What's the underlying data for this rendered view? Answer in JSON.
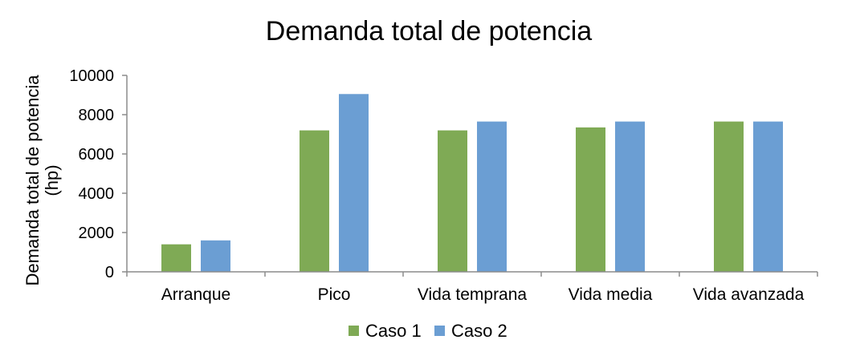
{
  "chart_data": {
    "type": "bar",
    "title": "Demanda total de potencia",
    "ylabel_line1": "Demanda total de potencia",
    "ylabel_line2": "(hp)",
    "xlabel": "",
    "categories": [
      "Arranque",
      "Pico",
      "Vida temprana",
      "Vida media",
      "Vida avanzada"
    ],
    "series": [
      {
        "name": "Caso 1",
        "color": "#7faa55",
        "values": [
          1400,
          7200,
          7200,
          7350,
          7650
        ]
      },
      {
        "name": "Caso 2",
        "color": "#6b9ed3",
        "values": [
          1600,
          9050,
          7650,
          7650,
          7650
        ]
      }
    ],
    "ylim": [
      0,
      10000
    ],
    "yticks": [
      0,
      2000,
      4000,
      6000,
      8000,
      10000
    ],
    "grid": false,
    "legend_position": "bottom"
  }
}
